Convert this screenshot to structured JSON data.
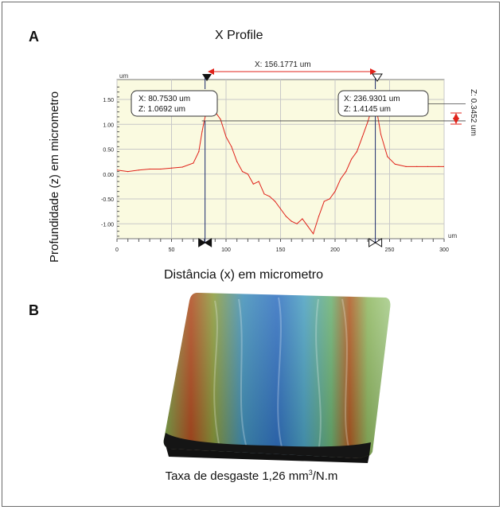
{
  "panel_a_label": "A",
  "panel_b_label": "B",
  "chart_data": {
    "type": "line",
    "title": "X Profile",
    "xlabel": "Distância (x) em micrometro",
    "ylabel": "Profundidade (z) em micrometro",
    "x_unit": "um",
    "y_unit": "um",
    "xlim": [
      0,
      300
    ],
    "ylim": [
      -1.3,
      1.9
    ],
    "x_ticks": [
      "0",
      "50",
      "100",
      "150",
      "200",
      "250",
      "300"
    ],
    "y_ticks": [
      "1.50",
      "1.00",
      "0.50",
      "0.00",
      "-0.50",
      "-1.00"
    ],
    "grid": true,
    "series": [
      {
        "color": "#e0231b",
        "x": [
          0,
          10,
          20,
          30,
          40,
          50,
          60,
          70,
          75,
          78,
          80,
          83,
          86,
          90,
          95,
          100,
          105,
          110,
          115,
          120,
          125,
          130,
          135,
          140,
          145,
          150,
          155,
          160,
          165,
          170,
          175,
          180,
          185,
          190,
          195,
          200,
          205,
          210,
          215,
          220,
          225,
          230,
          235,
          238,
          242,
          248,
          255,
          265,
          275,
          285,
          295,
          300
        ],
        "y": [
          0.08,
          0.05,
          0.08,
          0.1,
          0.1,
          0.12,
          0.14,
          0.22,
          0.45,
          0.85,
          1.07,
          1.35,
          1.45,
          1.25,
          1.1,
          0.75,
          0.55,
          0.25,
          0.05,
          0.0,
          -0.2,
          -0.15,
          -0.4,
          -0.45,
          -0.55,
          -0.7,
          -0.85,
          -0.95,
          -1.0,
          -0.9,
          -1.05,
          -1.2,
          -0.85,
          -0.55,
          -0.5,
          -0.35,
          -0.1,
          0.05,
          0.3,
          0.45,
          0.75,
          1.05,
          1.41,
          1.3,
          0.8,
          0.35,
          0.2,
          0.15,
          0.15,
          0.15,
          0.15,
          0.15
        ]
      }
    ],
    "cursors": [
      {
        "x_text": "X: 80.7530 um",
        "z_text": "Z: 1.0692 um",
        "x": 80.753,
        "z": 1.0692
      },
      {
        "x_text": "X: 236.9301 um",
        "z_text": "Z: 1.4145 um",
        "x": 236.9301,
        "z": 1.4145
      }
    ],
    "delta_x_label": "X: 156.1771 um",
    "delta_z_label": "Z: 0.3452 um"
  },
  "caption_prefix": "Taxa de desgaste 1,26 mm",
  "caption_superscript": "3",
  "caption_suffix": "/N.m",
  "colors": {
    "plot_bg": "#fafae0",
    "line": "#e0231b",
    "cursor": "#1b2a6b",
    "grid": "#c8c8c8"
  }
}
